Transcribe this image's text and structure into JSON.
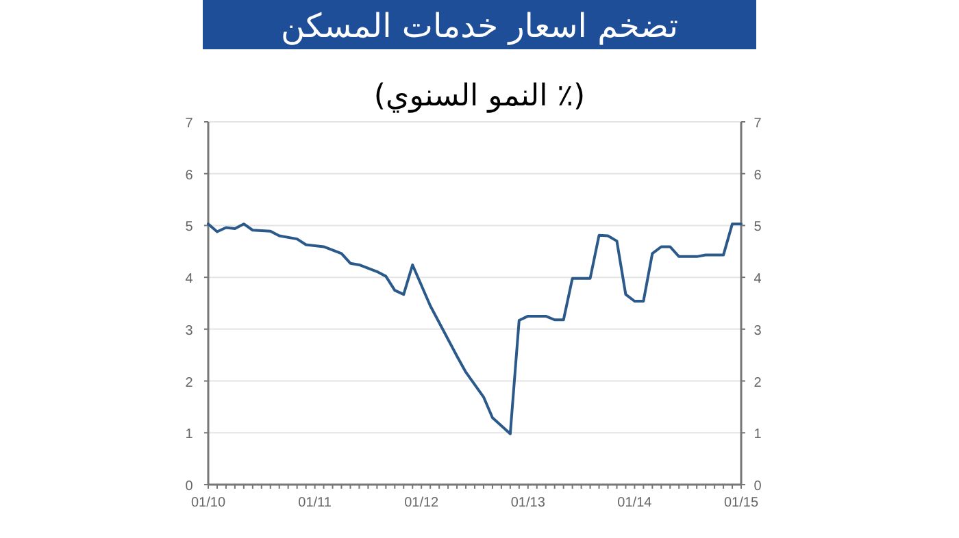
{
  "chart_data": {
    "type": "line",
    "title": "تضخم اسعار خدمات المسكن",
    "subtitle": "(٪ النمو السنوي)",
    "x": [
      "2010-01",
      "2010-02",
      "2010-03",
      "2010-04",
      "2010-05",
      "2010-06",
      "2010-08",
      "2010-09",
      "2010-11",
      "2010-12",
      "2011-02",
      "2011-04",
      "2011-05",
      "2011-06",
      "2011-08",
      "2011-09",
      "2011-10",
      "2011-11",
      "2011-12",
      "2012-02",
      "2012-05",
      "2012-06",
      "2012-08",
      "2012-09",
      "2012-11",
      "2012-12",
      "2013-01",
      "2013-03",
      "2013-04",
      "2013-05",
      "2013-06",
      "2013-08",
      "2013-09",
      "2013-10",
      "2013-11",
      "2013-12",
      "2014-01",
      "2014-02",
      "2014-03",
      "2014-04",
      "2014-05",
      "2014-06",
      "2014-08",
      "2014-09",
      "2014-11",
      "2014-12",
      "2015-01"
    ],
    "series": [
      {
        "color": "#2b5a8a",
        "values": [
          5.03,
          4.88,
          4.96,
          4.94,
          5.03,
          4.91,
          4.89,
          4.8,
          4.74,
          4.63,
          4.59,
          4.46,
          4.27,
          4.24,
          4.11,
          4.02,
          3.75,
          3.67,
          4.24,
          3.45,
          2.48,
          2.17,
          1.69,
          1.29,
          0.98,
          3.17,
          3.25,
          3.25,
          3.18,
          3.18,
          3.98,
          3.98,
          4.81,
          4.8,
          4.7,
          3.67,
          3.54,
          3.54,
          4.46,
          4.59,
          4.59,
          4.4,
          4.4,
          4.43,
          4.43,
          5.03,
          5.03
        ]
      }
    ],
    "xlim": [
      "2010-01",
      "2015-01"
    ],
    "xticks": [
      {
        "value": "2010-01",
        "label": "01/10"
      },
      {
        "value": "2011-01",
        "label": "01/11"
      },
      {
        "value": "2012-01",
        "label": "01/12"
      },
      {
        "value": "2013-01",
        "label": "01/13"
      },
      {
        "value": "2014-01",
        "label": "01/14"
      },
      {
        "value": "2015-01",
        "label": "01/15"
      }
    ],
    "ylim": [
      0,
      7
    ],
    "yticks": [
      0,
      1,
      2,
      3,
      4,
      5,
      6,
      7
    ],
    "y2lim": [
      0,
      7
    ],
    "y2ticks": [
      0,
      1,
      2,
      3,
      4,
      5,
      6,
      7
    ],
    "grid": "y",
    "marker": "none",
    "line_style": "solid"
  }
}
